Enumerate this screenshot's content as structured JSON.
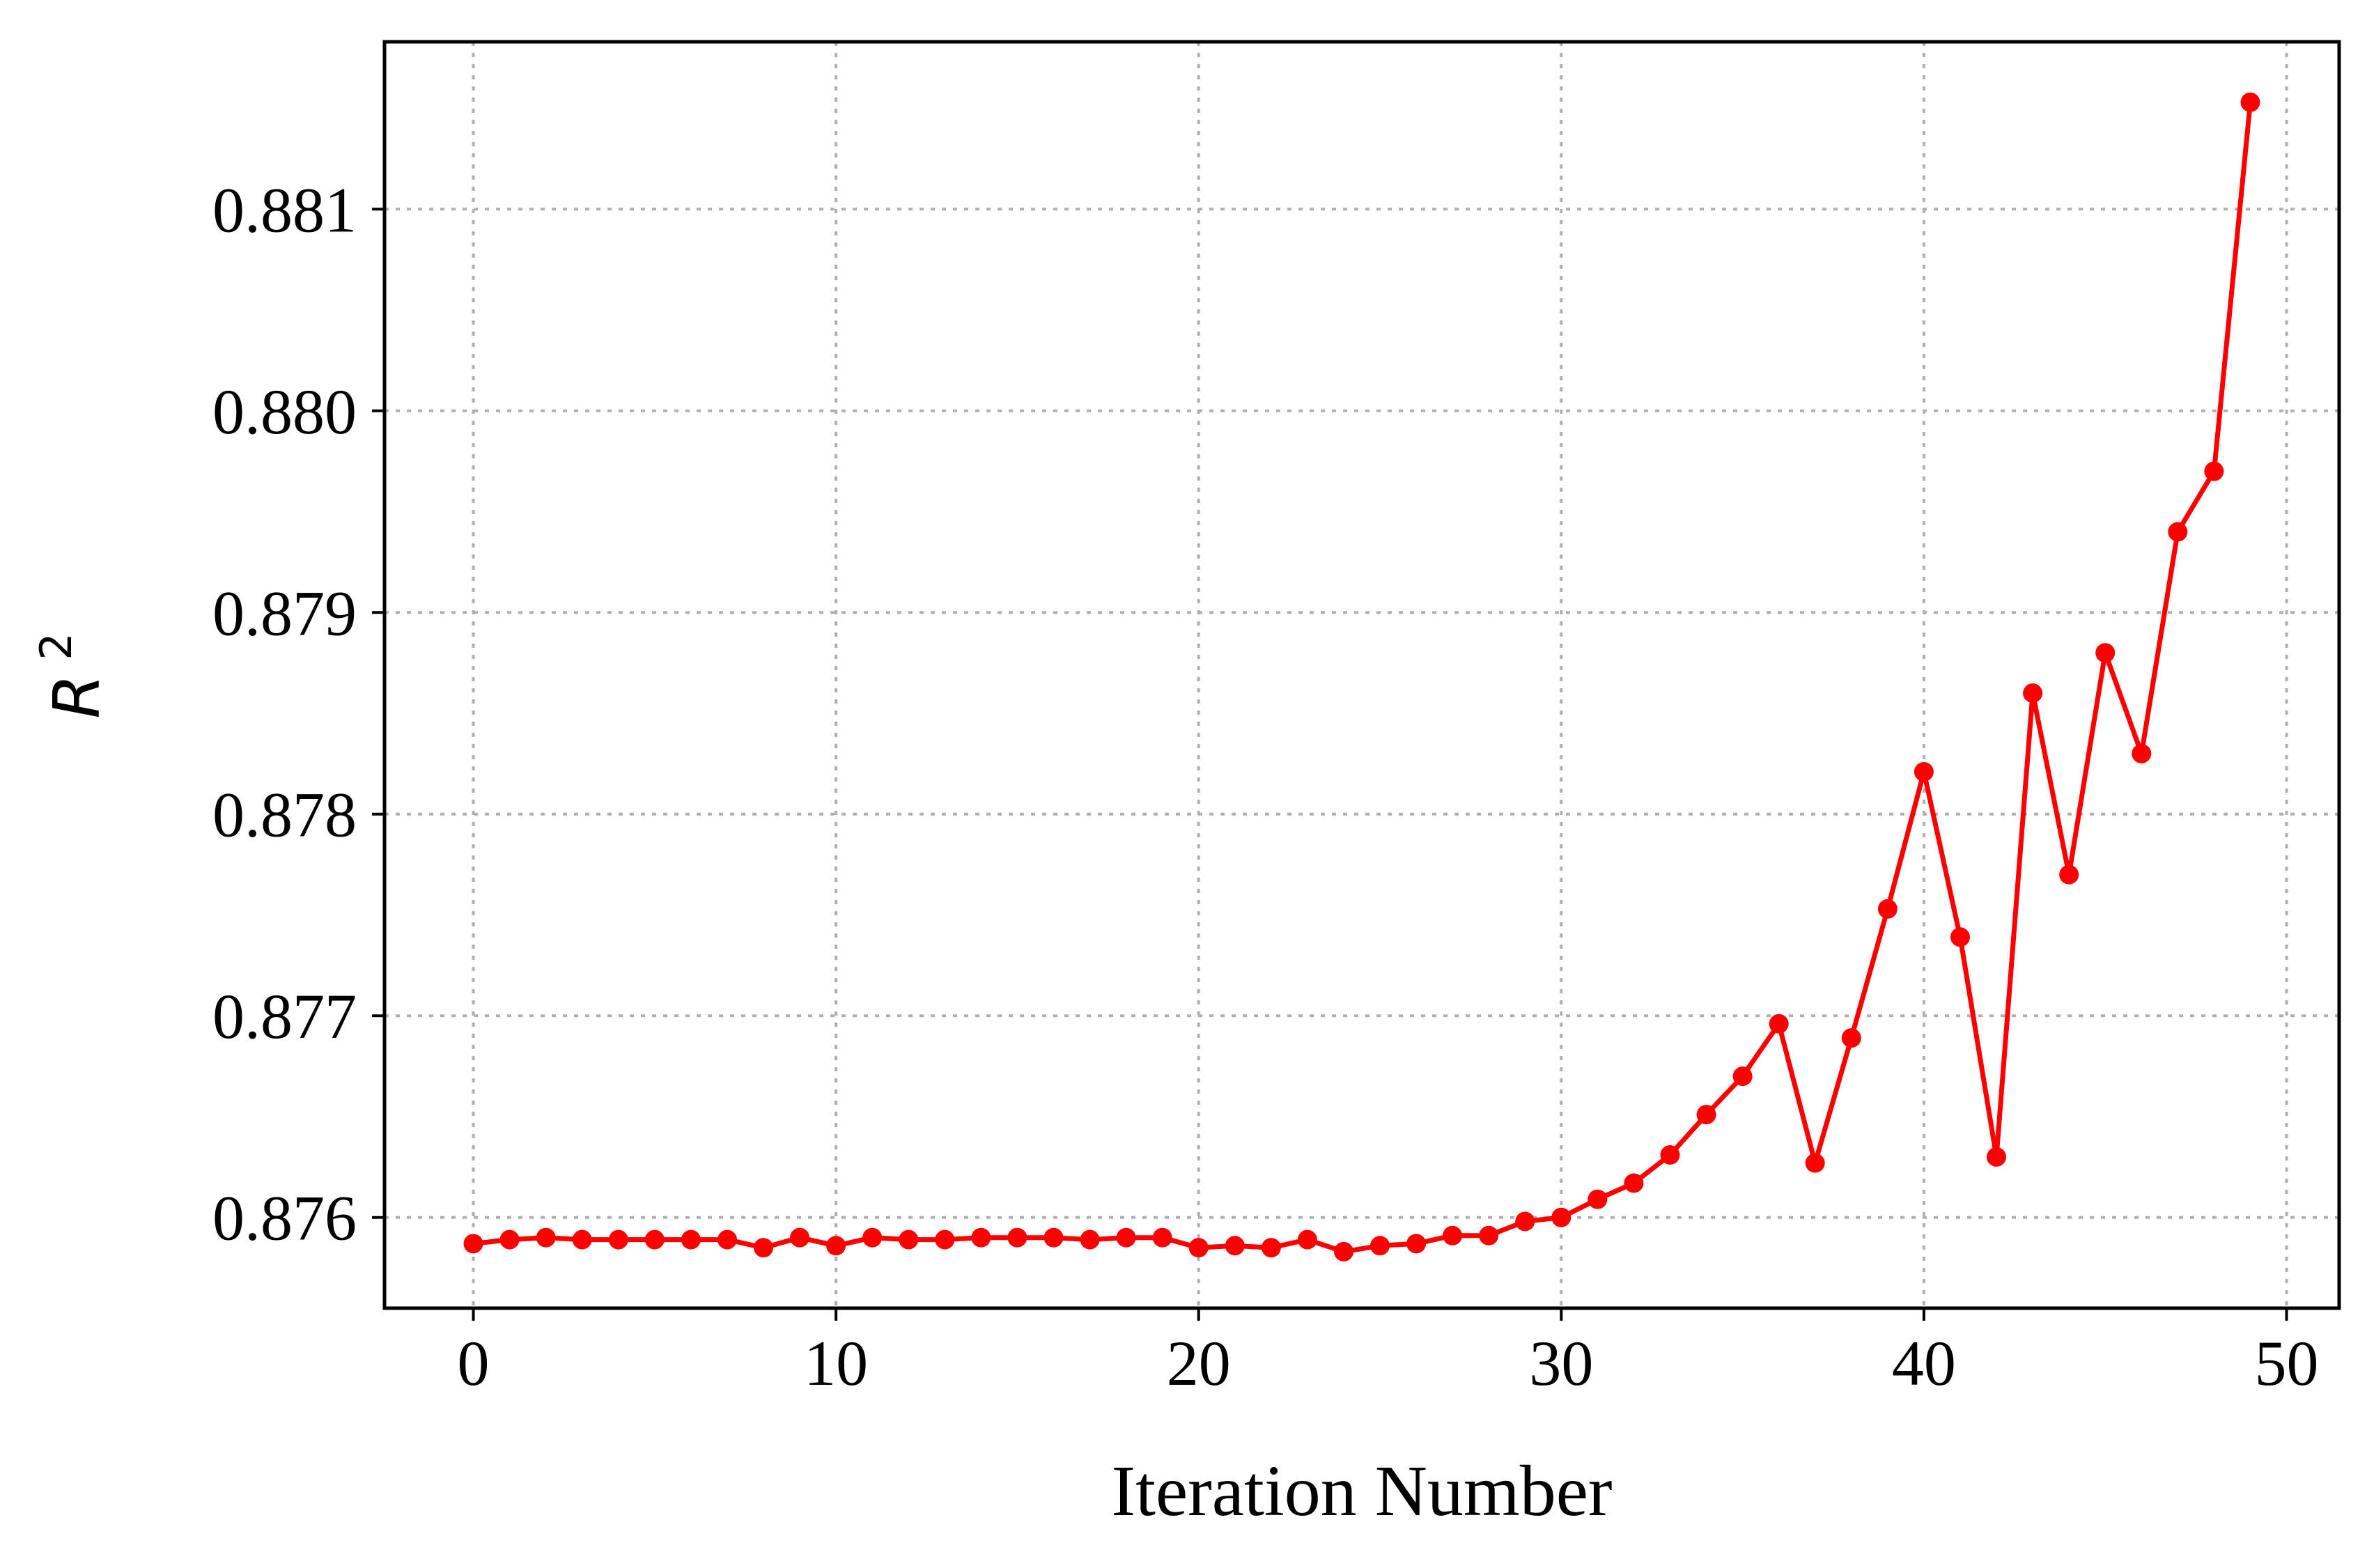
{
  "chart_data": {
    "type": "line",
    "title": "",
    "xlabel": "Iteration Number",
    "ylabel": "R",
    "ylabel_superscript": "2",
    "xlim": [
      -2.45,
      51.45
    ],
    "ylim": [
      0.87555,
      0.88183
    ],
    "xticks": [
      0,
      10,
      20,
      30,
      40,
      50
    ],
    "xtick_labels": [
      "0",
      "10",
      "20",
      "30",
      "40",
      "50"
    ],
    "yticks": [
      0.876,
      0.877,
      0.878,
      0.879,
      0.88,
      0.881
    ],
    "ytick_labels": [
      "0.876",
      "0.877",
      "0.878",
      "0.879",
      "0.880",
      "0.881"
    ],
    "grid": true,
    "series": [
      {
        "color": "#ff0000",
        "marker": "circle",
        "x": [
          0,
          1,
          2,
          3,
          4,
          5,
          6,
          7,
          8,
          9,
          10,
          11,
          12,
          13,
          14,
          15,
          16,
          17,
          18,
          19,
          20,
          21,
          22,
          23,
          24,
          25,
          26,
          27,
          28,
          29,
          30,
          31,
          32,
          33,
          34,
          35,
          36,
          37,
          38,
          39,
          40,
          41,
          42,
          43,
          44,
          45,
          46,
          47,
          48,
          49
        ],
        "y": [
          0.87587,
          0.87589,
          0.8759,
          0.87589,
          0.87589,
          0.87589,
          0.87589,
          0.87589,
          0.87585,
          0.8759,
          0.87586,
          0.8759,
          0.87589,
          0.87589,
          0.8759,
          0.8759,
          0.8759,
          0.87589,
          0.8759,
          0.8759,
          0.87585,
          0.87586,
          0.87585,
          0.87589,
          0.87583,
          0.87586,
          0.87587,
          0.87591,
          0.87591,
          0.87598,
          0.876,
          0.87609,
          0.87617,
          0.87631,
          0.87651,
          0.8767,
          0.87696,
          0.87627,
          0.87689,
          0.87753,
          0.87821,
          0.87739,
          0.8763,
          0.8786,
          0.8777,
          0.8788,
          0.8783,
          0.8794,
          0.8797,
          0.88153
        ]
      }
    ]
  }
}
